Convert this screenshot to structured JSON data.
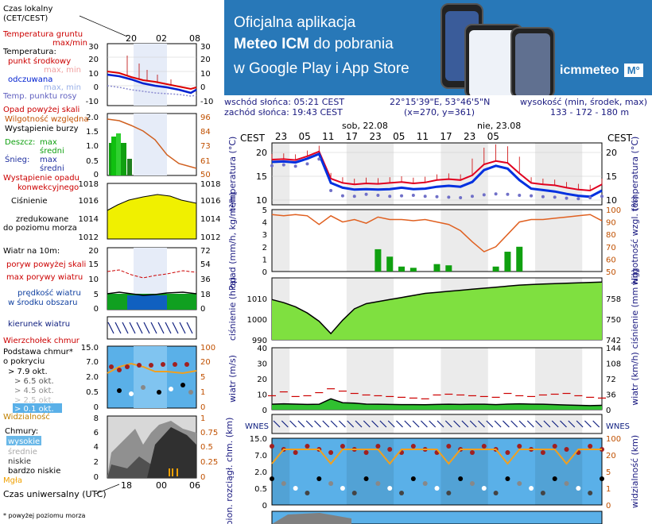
{
  "ad": {
    "line1": "Oficjalna aplikacja",
    "line2_bold": "Meteo ICM",
    "line2_rest": " do pobrania",
    "line3": "w Google Play i App Store",
    "logo": "icmmeteo",
    "logo_badge": "M°"
  },
  "header": {
    "sunrise": "wschód słońca: 05:21 CEST",
    "sunset": "zachód słońca: 19:43 CEST",
    "coords": "22°15'39\"E, 53°46'5\"N",
    "grid": "(x=270, y=361)",
    "elevation_label": "wysokość (min, środek, max)",
    "elevation_values": "133 - 172 - 180 m"
  },
  "legend": {
    "time_local": "Czas lokalny",
    "time_local2": "(CET/CEST)",
    "local_ticks": [
      "20",
      "02",
      "08"
    ],
    "ground_temp": "Temperatura gruntu",
    "maxmin": "max/min",
    "temperature": "Temperatura:",
    "mid_point": "punkt środkowy",
    "max_min": "max, min",
    "feels": "odczuwana",
    "feels_maxmin": "max, min",
    "dew": "Temp. punktu rosy",
    "temp_ticks": [
      "30",
      "20",
      "10",
      "0",
      "-10"
    ],
    "precip_over": "Opad powyżej skali",
    "humidity": "Wilgotność względna",
    "storm": "Wystąpienie burzy",
    "rain": "Deszcz:",
    "snow": "Śnieg:",
    "max": "max",
    "mean": "średni",
    "precip_conv": "Wystąpienie opadu",
    "precip_conv2": "konwekcyjnego",
    "precip_ticks": [
      "2.0",
      "1.5",
      "1.0",
      "0.5",
      "0"
    ],
    "hum_ticks": [
      "96",
      "84",
      "73",
      "61",
      "50"
    ],
    "pressure1": "Ciśnienie",
    "pressure2": "zredukowane",
    "pressure3": "do poziomu morza",
    "pres_ticks": [
      "1018",
      "1016",
      "1014",
      "1012"
    ],
    "wind_title": "Wiatr na 10m:",
    "gust_over": "poryw powyżej skali",
    "gust_max": "max porywy wiatru",
    "wind_speed": "prędkość wiatru",
    "wind_area": "w środku obszaru",
    "wind_ticks_l": [
      "20",
      "15",
      "10",
      "5",
      "0"
    ],
    "wind_ticks_r": [
      "72",
      "54",
      "36",
      "18",
      "0"
    ],
    "wind_dir": "kierunek wiatru",
    "cloud_top": "Wierzchołek chmur",
    "cloud_base": "Podstawa chmur*",
    "coverage": "o pokryciu",
    "okt": [
      "> 7.9 okt.",
      "> 6.5 okt.",
      "> 4.5 okt.",
      "> 2.5 okt.",
      "> 0.1 okt."
    ],
    "visibility": "Widzialność",
    "cb_ticks_l": [
      "15.0",
      "7.0",
      "2.0",
      "0.5",
      "0"
    ],
    "cb_ticks_r": [
      "100",
      "20",
      "5",
      "1",
      "0"
    ],
    "clouds": "Chmury:",
    "high": "wysokie",
    "middle": "średnie",
    "low": "niskie",
    "very_low": "bardzo niskie",
    "fog": "Mgła",
    "cl_ticks_l": [
      "8",
      "6",
      "4",
      "2",
      "0"
    ],
    "cl_ticks_r": [
      "1",
      "0.75",
      "0.5",
      "0.25",
      "0"
    ],
    "utc": "Czas uniwersalny (UTC)",
    "utc_ticks": [
      "18",
      "00",
      "06"
    ],
    "footnote": "* powyżej poziomu morza"
  },
  "chart_data": {
    "type": "line",
    "title": "",
    "days": [
      "sob, 22.08",
      "nie, 23.08"
    ],
    "timezone": "CEST",
    "hour_ticks": [
      "23",
      "05",
      "11",
      "17",
      "23",
      "05",
      "11",
      "17",
      "23",
      "05"
    ],
    "x_hours": [
      0,
      3,
      6,
      9,
      12,
      15,
      18,
      21,
      24,
      27,
      30,
      33,
      36,
      39,
      42,
      45,
      48,
      51,
      54,
      57,
      60,
      63,
      66,
      69,
      72,
      75,
      78,
      81,
      84
    ],
    "temperature": {
      "ylabel": "temperatura (°C)",
      "ylim": [
        9,
        22
      ],
      "ticks": [
        "20",
        "15",
        "10"
      ],
      "series": [
        {
          "name": "max",
          "values": [
            18.5,
            18.6,
            18.4,
            19.2,
            20.2,
            14.5,
            13.6,
            13.3,
            13.5,
            13.4,
            13.6,
            13.8,
            13.5,
            13.7,
            14.2,
            14.4,
            14.2,
            15.2,
            17.5,
            18.2,
            17.8,
            15.6,
            13.6,
            13.3,
            13.1,
            12.6,
            12.2,
            12.0,
            13.3
          ]
        },
        {
          "name": "mid",
          "values": [
            18.0,
            18.1,
            17.9,
            18.7,
            19.7,
            13.6,
            12.6,
            12.2,
            12.3,
            12.2,
            12.3,
            12.6,
            12.3,
            12.4,
            12.8,
            13.0,
            12.8,
            13.8,
            16.3,
            17.2,
            16.6,
            14.2,
            12.4,
            12.1,
            11.8,
            11.3,
            10.9,
            10.7,
            12.0
          ]
        },
        {
          "name": "dew",
          "values": [
            17.2,
            17.4,
            17.1,
            17.6,
            18.6,
            12.0,
            10.9,
            10.8,
            11.2,
            11.0,
            10.8,
            10.9,
            11.0,
            10.8,
            10.7,
            10.6,
            10.5,
            10.8,
            11.1,
            11.3,
            11.2,
            11.0,
            10.9,
            10.7,
            10.6,
            10.4,
            10.3,
            10.5,
            10.8
          ]
        }
      ]
    },
    "precip": {
      "ylabel": "opad (mm/h, kg/m²/h)",
      "y2label": "wilgotność wzgl. (%)",
      "ticks": [
        "0",
        "1",
        "2",
        "3",
        "4",
        "5"
      ],
      "hum_ticks": [
        "100",
        "90",
        "80",
        "70",
        "60",
        "50"
      ],
      "humidity": [
        96,
        95,
        96,
        95,
        88,
        95,
        90,
        92,
        89,
        94,
        92,
        92,
        91,
        92,
        90,
        88,
        83,
        74,
        66,
        70,
        80,
        90,
        92,
        92,
        93,
        94,
        95,
        96,
        91
      ],
      "rain": [
        0,
        0,
        0,
        0,
        0,
        0,
        0,
        0,
        0,
        1.8,
        1.2,
        0.4,
        0.3,
        0,
        0.6,
        0.5,
        0,
        0,
        0,
        0.4,
        1.6,
        2.0,
        0,
        0,
        0,
        0,
        0,
        0,
        0
      ]
    },
    "pressure": {
      "ylabel": "ciśnienie (hPa)",
      "y2label": "ciśnienie (mm Hg)",
      "ylim": [
        990,
        1020
      ],
      "ticks": [
        "1010",
        "1000",
        "990"
      ],
      "r_ticks": [
        "758",
        "750",
        "742"
      ],
      "values": [
        1009.5,
        1008.0,
        1006.0,
        1003.0,
        999.0,
        993.0,
        999.5,
        1005.0,
        1007.5,
        1008.5,
        1009.5,
        1010.5,
        1011.5,
        1012.5,
        1013.0,
        1013.5,
        1014.0,
        1014.5,
        1015.0,
        1015.5,
        1016.0,
        1016.5,
        1016.8,
        1017.0,
        1017.2,
        1017.4,
        1017.6,
        1017.8,
        1018.0
      ]
    },
    "wind": {
      "ylabel": "wiatr (m/s)",
      "y2label": "wiatr (km/h)",
      "ticks": [
        "0",
        "10",
        "20",
        "30",
        "40"
      ],
      "r_ticks": [
        "0",
        "36",
        "72",
        "108",
        "144"
      ],
      "gust": [
        9.0,
        11.5,
        8.5,
        9.0,
        11.0,
        13.5,
        12.0,
        10.5,
        9.5,
        9.0,
        8.5,
        8.0,
        7.5,
        7.0,
        9.5,
        10.0,
        9.5,
        9.0,
        8.5,
        8.0,
        10.5,
        9.0,
        8.5,
        9.5,
        10.0,
        10.5,
        9.0,
        8.0,
        7.5
      ],
      "speed": [
        3.5,
        3.8,
        3.6,
        3.4,
        3.5,
        7.0,
        4.5,
        4.2,
        3.6,
        3.5,
        3.4,
        3.3,
        3.3,
        3.2,
        3.4,
        3.5,
        3.4,
        3.5,
        3.5,
        3.3,
        3.6,
        3.8,
        3.6,
        3.5,
        3.3,
        3.0,
        2.8,
        2.6,
        2.8
      ]
    },
    "cloud": {
      "ylabel": "pion. rozciągł. chm. (km)",
      "y2label": "widzialność (km)",
      "ticks": [
        "15.0",
        "7.0",
        "2.0",
        "0.5",
        "0"
      ],
      "r_ticks": [
        "100",
        "20",
        "5",
        "1",
        "0"
      ]
    }
  }
}
